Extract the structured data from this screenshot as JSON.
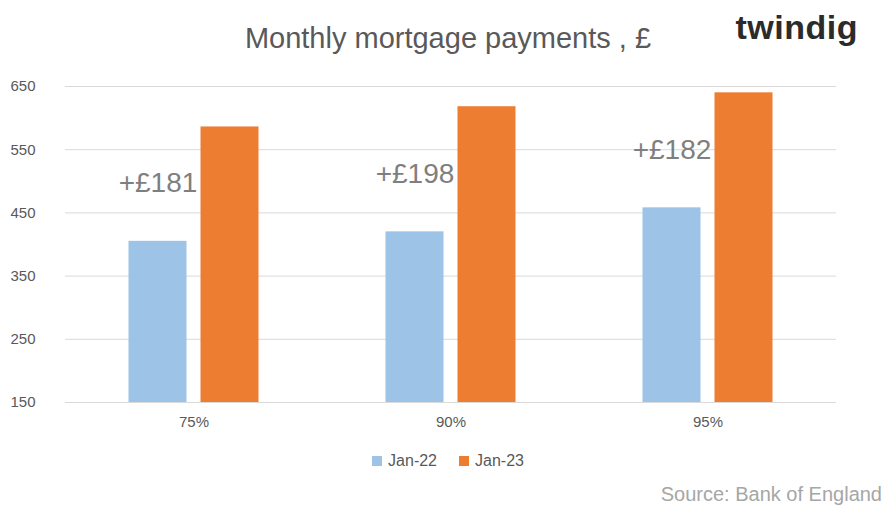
{
  "chart_data": {
    "type": "bar",
    "title": "Monthly mortgage payments , £",
    "logo": "twindig",
    "source": "Source: Bank of England",
    "categories": [
      "75%",
      "90%",
      "95%"
    ],
    "series": [
      {
        "name": "Jan-22",
        "color": "#9dc3e6",
        "values": [
          405,
          420,
          458
        ]
      },
      {
        "name": "Jan-23",
        "color": "#ed7d31",
        "values": [
          586,
          618,
          640
        ]
      }
    ],
    "annotations": [
      {
        "category": "75%",
        "text": "+£181"
      },
      {
        "category": "90%",
        "text": "+£198"
      },
      {
        "category": "95%",
        "text": "+£182"
      }
    ],
    "ylim": [
      150,
      650
    ],
    "yticks": [
      150,
      250,
      350,
      450,
      550,
      650
    ],
    "grid": true,
    "legend": "bottom"
  }
}
